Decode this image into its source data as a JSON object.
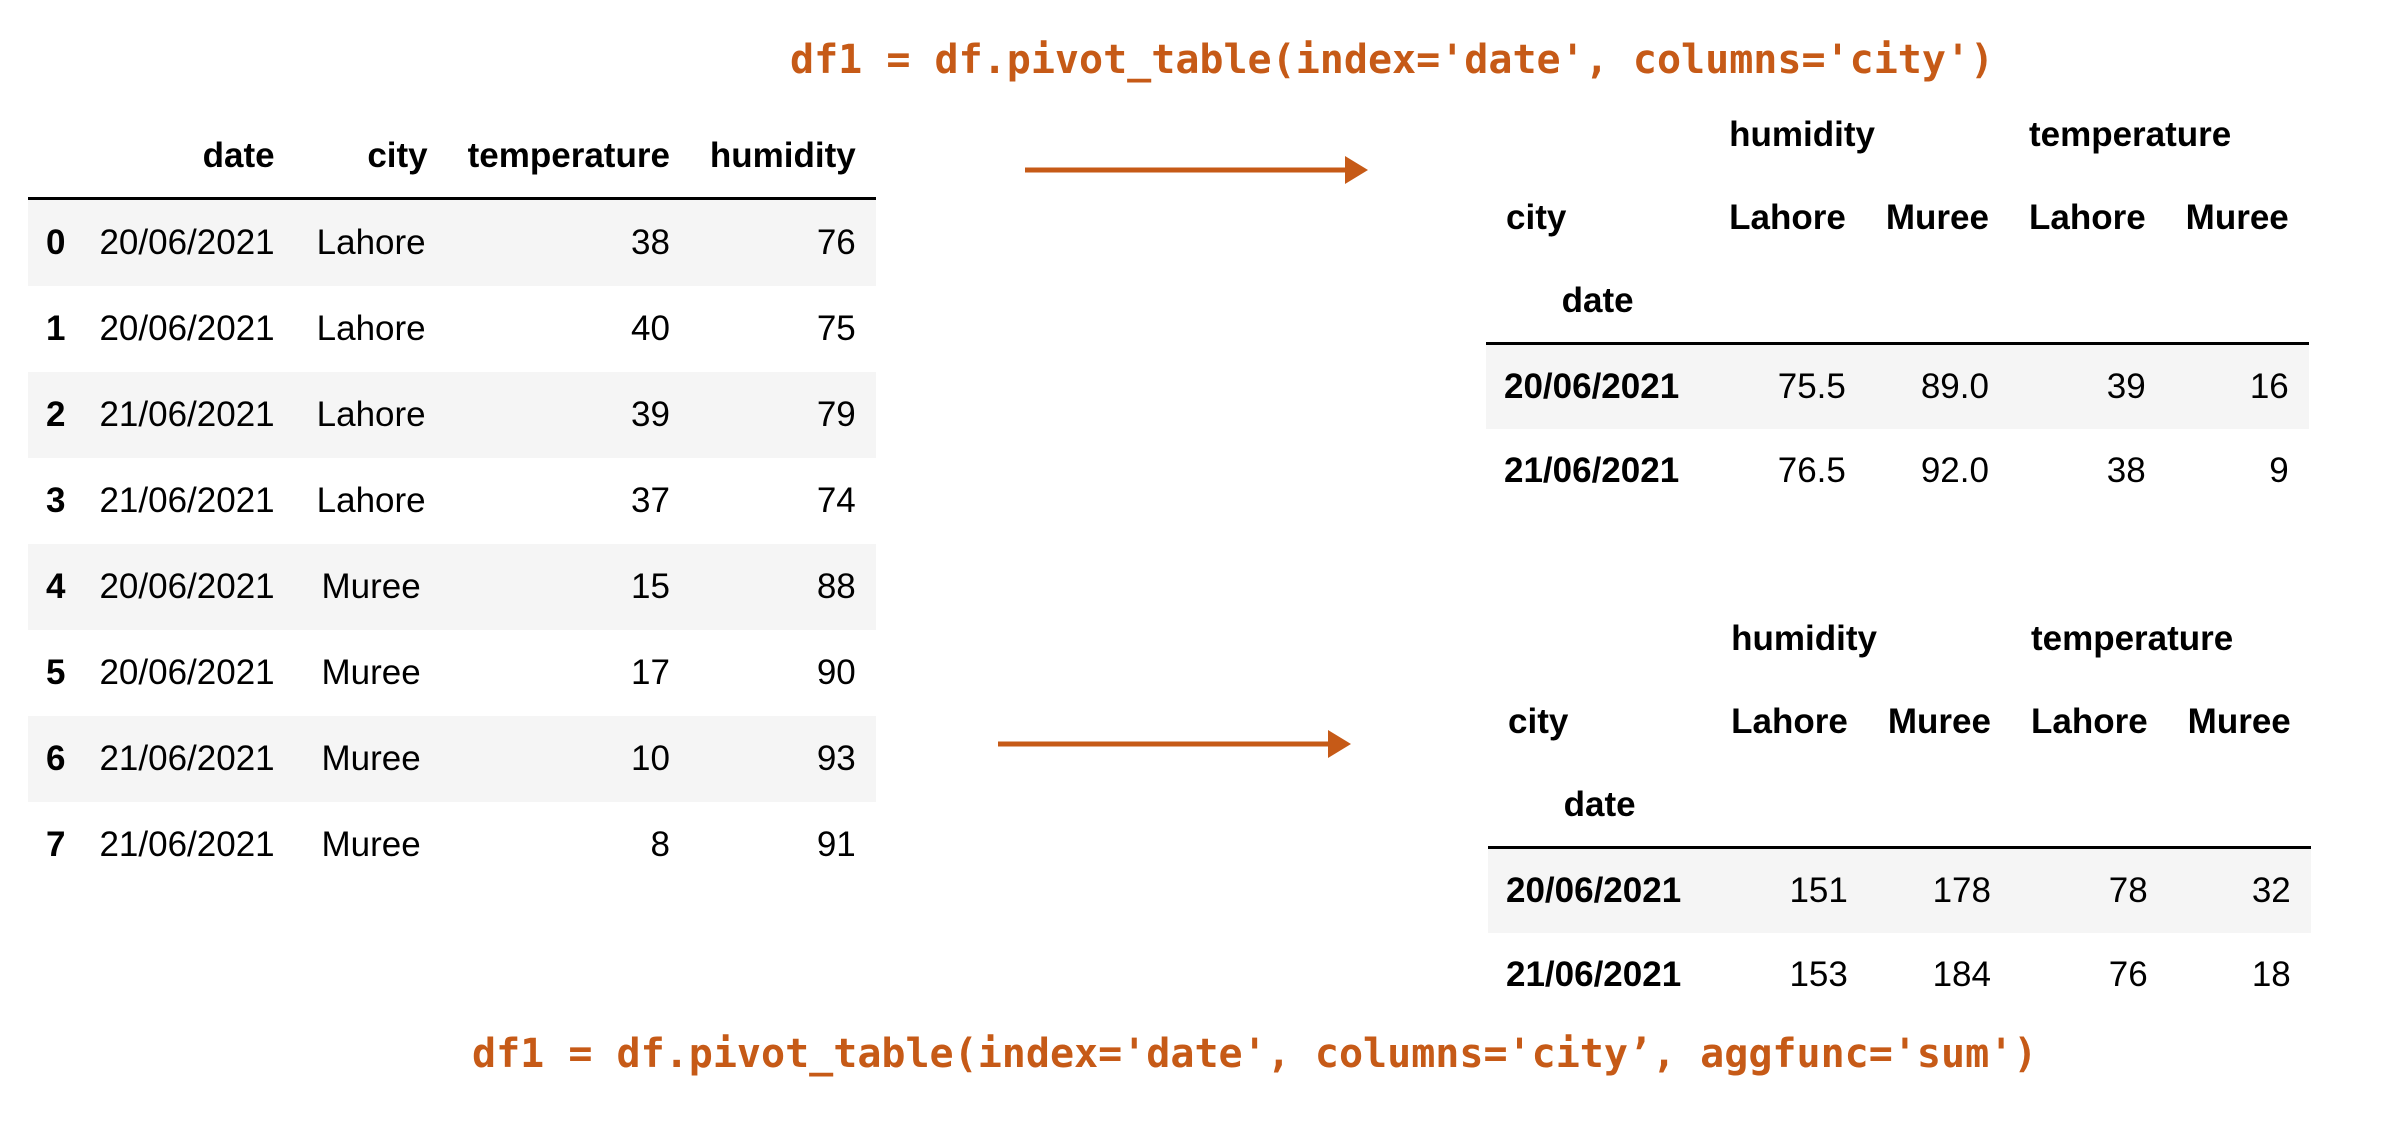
{
  "code_top": "df1 = df.pivot_table(index='date', columns='city')",
  "code_bottom": "df1 = df.pivot_table(index='date', columns='city’, aggfunc='sum')",
  "colors": {
    "accent": "#c65a17",
    "stripe": "#f5f5f5",
    "text": "#000000"
  },
  "source_table": {
    "columns": [
      "date",
      "city",
      "temperature",
      "humidity"
    ],
    "rows": [
      {
        "index": "0",
        "date": "20/06/2021",
        "city": "Lahore",
        "temperature": "38",
        "humidity": "76"
      },
      {
        "index": "1",
        "date": "20/06/2021",
        "city": "Lahore",
        "temperature": "40",
        "humidity": "75"
      },
      {
        "index": "2",
        "date": "21/06/2021",
        "city": "Lahore",
        "temperature": "39",
        "humidity": "79"
      },
      {
        "index": "3",
        "date": "21/06/2021",
        "city": "Lahore",
        "temperature": "37",
        "humidity": "74"
      },
      {
        "index": "4",
        "date": "20/06/2021",
        "city": "Muree",
        "temperature": "15",
        "humidity": "88"
      },
      {
        "index": "5",
        "date": "20/06/2021",
        "city": "Muree",
        "temperature": "17",
        "humidity": "90"
      },
      {
        "index": "6",
        "date": "21/06/2021",
        "city": "Muree",
        "temperature": "10",
        "humidity": "93"
      },
      {
        "index": "7",
        "date": "21/06/2021",
        "city": "Muree",
        "temperature": "8",
        "humidity": "91"
      }
    ]
  },
  "pivot_mean": {
    "top_headers": [
      "humidity",
      "temperature"
    ],
    "columns_label": "city",
    "sub_headers": [
      "Lahore",
      "Muree",
      "Lahore",
      "Muree"
    ],
    "index_label": "date",
    "rows": [
      {
        "date": "20/06/2021",
        "values": [
          "75.5",
          "89.0",
          "39",
          "16"
        ]
      },
      {
        "date": "21/06/2021",
        "values": [
          "76.5",
          "92.0",
          "38",
          "9"
        ]
      }
    ]
  },
  "pivot_sum": {
    "top_headers": [
      "humidity",
      "temperature"
    ],
    "columns_label": "city",
    "sub_headers": [
      "Lahore",
      "Muree",
      "Lahore",
      "Muree"
    ],
    "index_label": "date",
    "rows": [
      {
        "date": "20/06/2021",
        "values": [
          "151",
          "178",
          "78",
          "32"
        ]
      },
      {
        "date": "21/06/2021",
        "values": [
          "153",
          "184",
          "76",
          "18"
        ]
      }
    ]
  }
}
